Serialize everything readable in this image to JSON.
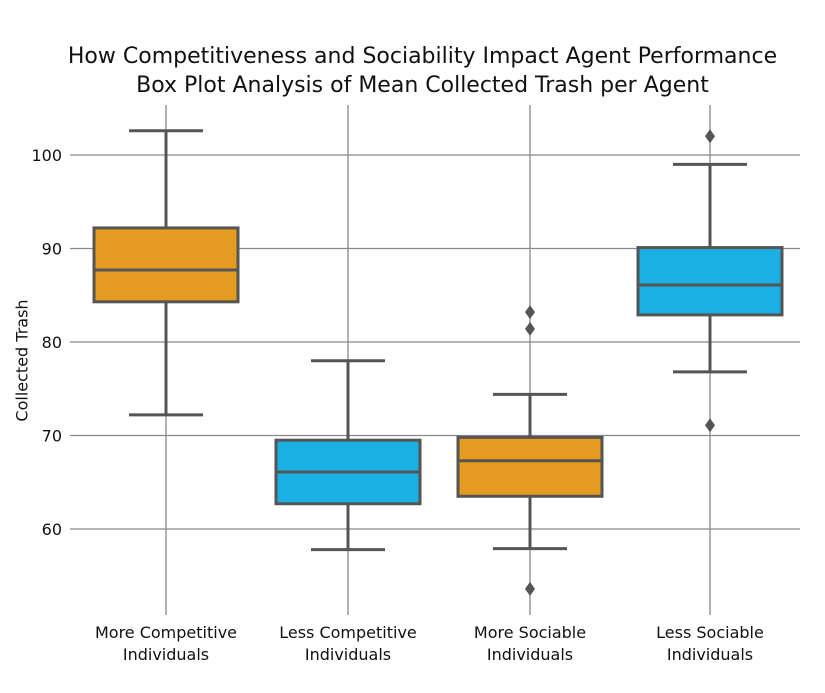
{
  "chart_data": {
    "type": "box",
    "title": "How Competitiveness and Sociability Impact Agent Performance",
    "subtitle": "Box Plot Analysis of Mean Collected Trash per Agent",
    "xlabel": "",
    "ylabel": "Collected Trash",
    "ylim": [
      50,
      105
    ],
    "yticks": [
      60,
      70,
      80,
      90,
      100
    ],
    "grid": true,
    "colors": {
      "orange": "#e59b1f",
      "blue": "#1ab0e3",
      "edge": "#555555",
      "grid": "#888888"
    },
    "boxes": [
      {
        "label_line1": "More Competitive",
        "label_line2": "Individuals",
        "color": "#e59b1f",
        "whisker_low": 72.2,
        "q1": 84.3,
        "median": 87.7,
        "q3": 92.2,
        "whisker_high": 102.6,
        "outliers": []
      },
      {
        "label_line1": "Less Competitive",
        "label_line2": "Individuals",
        "color": "#1ab0e3",
        "whisker_low": 57.8,
        "q1": 62.7,
        "median": 66.1,
        "q3": 69.5,
        "whisker_high": 78.0,
        "outliers": []
      },
      {
        "label_line1": "More Sociable",
        "label_line2": "Individuals",
        "color": "#e59b1f",
        "whisker_low": 57.9,
        "q1": 63.5,
        "median": 67.3,
        "q3": 69.8,
        "whisker_high": 74.4,
        "outliers": [
          81.4,
          83.2,
          53.6
        ]
      },
      {
        "label_line1": "Less Sociable",
        "label_line2": "Individuals",
        "color": "#1ab0e3",
        "whisker_low": 76.8,
        "q1": 82.9,
        "median": 86.1,
        "q3": 90.1,
        "whisker_high": 99.0,
        "outliers": [
          102.0,
          71.1
        ]
      }
    ]
  }
}
